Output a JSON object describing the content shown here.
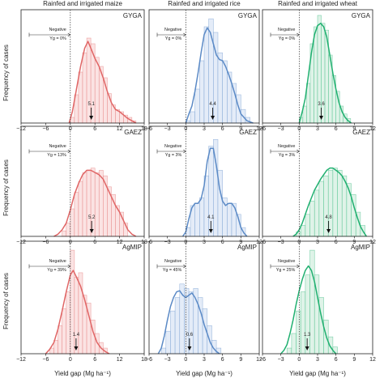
{
  "y_axis_title": "Frequency of cases",
  "x_axis_title": "Yield gap (Mg ha⁻¹)",
  "column_titles": [
    "Rainfed and irrigated maize",
    "Rainfed and irrigated rice",
    "Rainfed and irrigated wheat"
  ],
  "row_labels": [
    "GYGA",
    "GAEZ",
    "AgMIP"
  ],
  "colors": {
    "maize": "#e06666",
    "rice": "#5b8ac6",
    "wheat": "#20b070"
  },
  "fills": {
    "maize": "#fbe3e3",
    "rice": "#e4ecf8",
    "wheat": "#dff3e8"
  },
  "chart_data": [
    {
      "type": "bar",
      "crop": "maize",
      "dataset": "GYGA",
      "xlim": [
        -12,
        18
      ],
      "xticks": [
        -12,
        -6,
        0,
        6,
        12,
        18
      ],
      "negative_label": [
        "Negative",
        "Yg = 0%"
      ],
      "median": 5.1,
      "median_label": "5.1",
      "bins": [
        [
          0,
          0.05
        ],
        [
          1,
          0.25
        ],
        [
          2,
          0.45
        ],
        [
          3,
          0.62
        ],
        [
          4,
          0.75
        ],
        [
          5,
          0.7
        ],
        [
          6,
          0.58
        ],
        [
          7,
          0.5
        ],
        [
          8,
          0.4
        ],
        [
          9,
          0.26
        ],
        [
          10,
          0.16
        ],
        [
          11,
          0.12
        ],
        [
          12,
          0.1
        ],
        [
          13,
          0.07
        ],
        [
          14,
          0.05
        ],
        [
          15,
          0.02
        ]
      ],
      "density": [
        [
          -0.3,
          0
        ],
        [
          0.5,
          0.1
        ],
        [
          1.5,
          0.3
        ],
        [
          2.5,
          0.5
        ],
        [
          3.5,
          0.66
        ],
        [
          4.3,
          0.72
        ],
        [
          5,
          0.66
        ],
        [
          6,
          0.57
        ],
        [
          7,
          0.5
        ],
        [
          8,
          0.4
        ],
        [
          9,
          0.28
        ],
        [
          10,
          0.18
        ],
        [
          11,
          0.12
        ],
        [
          12,
          0.1
        ],
        [
          13,
          0.07
        ],
        [
          14,
          0.04
        ],
        [
          15,
          0.02
        ],
        [
          16,
          0
        ]
      ]
    },
    {
      "type": "bar",
      "crop": "rice",
      "dataset": "GYGA",
      "xlim": [
        -6,
        12
      ],
      "xticks": [
        -6,
        -3,
        0,
        3,
        6,
        9,
        12
      ],
      "negative_label": [
        "Negative",
        "Yg = 0%"
      ],
      "median": 4.4,
      "median_label": "4.4",
      "bins": [
        [
          0,
          0.02
        ],
        [
          0.75,
          0.1
        ],
        [
          1.5,
          0.3
        ],
        [
          2.25,
          0.55
        ],
        [
          3,
          0.85
        ],
        [
          3.75,
          0.92
        ],
        [
          4.5,
          0.8
        ],
        [
          5.25,
          0.62
        ],
        [
          6,
          0.55
        ],
        [
          6.75,
          0.45
        ],
        [
          7.5,
          0.35
        ],
        [
          8.25,
          0.25
        ],
        [
          9,
          0.12
        ],
        [
          9.75,
          0.05
        ]
      ],
      "density": [
        [
          0,
          0
        ],
        [
          0.5,
          0.08
        ],
        [
          1,
          0.15
        ],
        [
          1.5,
          0.28
        ],
        [
          2,
          0.44
        ],
        [
          2.5,
          0.62
        ],
        [
          3,
          0.78
        ],
        [
          3.5,
          0.84
        ],
        [
          4,
          0.8
        ],
        [
          4.5,
          0.7
        ],
        [
          5,
          0.6
        ],
        [
          5.5,
          0.56
        ],
        [
          6,
          0.55
        ],
        [
          6.5,
          0.5
        ],
        [
          7,
          0.43
        ],
        [
          7.5,
          0.35
        ],
        [
          8,
          0.26
        ],
        [
          8.5,
          0.16
        ],
        [
          9,
          0.08
        ],
        [
          10,
          0.02
        ],
        [
          11,
          0
        ]
      ]
    },
    {
      "type": "bar",
      "crop": "wheat",
      "dataset": "GYGA",
      "xlim": [
        -6,
        12
      ],
      "xticks": [
        -6,
        -3,
        0,
        3,
        6,
        9,
        12
      ],
      "negative_label": [
        "Negative",
        "Yg = 0%"
      ],
      "median": 3.6,
      "median_label": "3.6",
      "bins": [
        [
          0,
          0.05
        ],
        [
          0.6,
          0.15
        ],
        [
          1.2,
          0.35
        ],
        [
          1.8,
          0.7
        ],
        [
          2.4,
          0.85
        ],
        [
          3,
          0.95
        ],
        [
          3.6,
          0.88
        ],
        [
          4.2,
          0.82
        ],
        [
          4.8,
          0.6
        ],
        [
          5.4,
          0.42
        ],
        [
          6,
          0.28
        ],
        [
          6.6,
          0.15
        ],
        [
          7.2,
          0.08
        ],
        [
          7.8,
          0.04
        ]
      ],
      "density": [
        [
          0,
          0
        ],
        [
          0.5,
          0.1
        ],
        [
          1,
          0.22
        ],
        [
          1.5,
          0.42
        ],
        [
          2,
          0.62
        ],
        [
          2.5,
          0.78
        ],
        [
          3,
          0.86
        ],
        [
          3.5,
          0.88
        ],
        [
          4,
          0.85
        ],
        [
          4.5,
          0.76
        ],
        [
          5,
          0.6
        ],
        [
          5.5,
          0.44
        ],
        [
          6,
          0.3
        ],
        [
          6.5,
          0.18
        ],
        [
          7,
          0.1
        ],
        [
          7.5,
          0.05
        ],
        [
          8,
          0.02
        ],
        [
          8.5,
          0
        ]
      ]
    },
    {
      "type": "bar",
      "crop": "maize",
      "dataset": "GAEZ",
      "xlim": [
        -12,
        18
      ],
      "xticks": [
        -12,
        -6,
        0,
        6,
        12,
        18
      ],
      "negative_label": [
        "Negative",
        "Yg = 13%"
      ],
      "median": 5.2,
      "median_label": "5.2",
      "bins": [
        [
          -2,
          0.05
        ],
        [
          -1,
          0.12
        ],
        [
          0,
          0.25
        ],
        [
          1,
          0.4
        ],
        [
          2,
          0.5
        ],
        [
          3,
          0.58
        ],
        [
          4,
          0.6
        ],
        [
          5,
          0.62
        ],
        [
          6,
          0.58
        ],
        [
          7,
          0.6
        ],
        [
          8,
          0.55
        ],
        [
          9,
          0.45
        ],
        [
          10,
          0.38
        ],
        [
          11,
          0.28
        ],
        [
          12,
          0.22
        ],
        [
          13,
          0.12
        ]
      ],
      "density": [
        [
          -4,
          0
        ],
        [
          -3,
          0.02
        ],
        [
          -2,
          0.06
        ],
        [
          -1,
          0.12
        ],
        [
          0,
          0.24
        ],
        [
          1,
          0.38
        ],
        [
          2,
          0.48
        ],
        [
          3,
          0.56
        ],
        [
          4,
          0.6
        ],
        [
          5,
          0.6
        ],
        [
          6,
          0.58
        ],
        [
          7,
          0.56
        ],
        [
          8,
          0.52
        ],
        [
          9,
          0.44
        ],
        [
          10,
          0.36
        ],
        [
          11,
          0.28
        ],
        [
          12,
          0.22
        ],
        [
          13,
          0.14
        ],
        [
          14,
          0.06
        ],
        [
          15,
          0.02
        ],
        [
          16,
          0
        ]
      ]
    },
    {
      "type": "bar",
      "crop": "rice",
      "dataset": "GAEZ",
      "xlim": [
        -6,
        12
      ],
      "xticks": [
        -6,
        -3,
        0,
        3,
        6,
        9,
        12
      ],
      "negative_label": [
        "Negative",
        "Yg = 3%"
      ],
      "median": 4.1,
      "median_label": "4.1",
      "bins": [
        [
          0,
          0.08
        ],
        [
          0.75,
          0.28
        ],
        [
          1.5,
          0.3
        ],
        [
          2.25,
          0.35
        ],
        [
          3,
          0.55
        ],
        [
          3.75,
          0.82
        ],
        [
          4.5,
          0.88
        ],
        [
          5.25,
          0.6
        ],
        [
          6,
          0.35
        ],
        [
          6.75,
          0.3
        ],
        [
          7.5,
          0.3
        ],
        [
          8.25,
          0.2
        ],
        [
          9,
          0.08
        ]
      ],
      "density": [
        [
          -0.5,
          0
        ],
        [
          0,
          0.04
        ],
        [
          0.5,
          0.16
        ],
        [
          1,
          0.26
        ],
        [
          1.5,
          0.3
        ],
        [
          2,
          0.3
        ],
        [
          2.5,
          0.34
        ],
        [
          3,
          0.46
        ],
        [
          3.5,
          0.68
        ],
        [
          4,
          0.8
        ],
        [
          4.5,
          0.8
        ],
        [
          5,
          0.64
        ],
        [
          5.5,
          0.44
        ],
        [
          6,
          0.32
        ],
        [
          6.5,
          0.28
        ],
        [
          7,
          0.3
        ],
        [
          7.5,
          0.3
        ],
        [
          8,
          0.26
        ],
        [
          8.5,
          0.18
        ],
        [
          9,
          0.08
        ],
        [
          9.5,
          0.03
        ],
        [
          10,
          0
        ]
      ]
    },
    {
      "type": "bar",
      "crop": "wheat",
      "dataset": "GAEZ",
      "xlim": [
        -6,
        12
      ],
      "xticks": [
        -6,
        -3,
        0,
        3,
        6,
        9,
        12
      ],
      "negative_label": [
        "Negative",
        "Yg = 3%"
      ],
      "median": 4.8,
      "median_label": "4.8",
      "bins": [
        [
          -0.5,
          0.04
        ],
        [
          0.25,
          0.1
        ],
        [
          1,
          0.2
        ],
        [
          1.75,
          0.32
        ],
        [
          2.5,
          0.42
        ],
        [
          3.25,
          0.5
        ],
        [
          4,
          0.55
        ],
        [
          4.75,
          0.6
        ],
        [
          5.5,
          0.62
        ],
        [
          6.25,
          0.6
        ],
        [
          7,
          0.55
        ],
        [
          7.75,
          0.48
        ],
        [
          8.5,
          0.38
        ],
        [
          9.25,
          0.22
        ],
        [
          10,
          0.1
        ]
      ],
      "density": [
        [
          -1,
          0
        ],
        [
          -0.5,
          0.02
        ],
        [
          0,
          0.06
        ],
        [
          0.5,
          0.12
        ],
        [
          1,
          0.2
        ],
        [
          1.5,
          0.28
        ],
        [
          2,
          0.35
        ],
        [
          2.5,
          0.42
        ],
        [
          3,
          0.47
        ],
        [
          3.5,
          0.52
        ],
        [
          4,
          0.56
        ],
        [
          4.5,
          0.6
        ],
        [
          5,
          0.62
        ],
        [
          5.5,
          0.62
        ],
        [
          6,
          0.6
        ],
        [
          6.5,
          0.58
        ],
        [
          7,
          0.55
        ],
        [
          7.5,
          0.5
        ],
        [
          8,
          0.44
        ],
        [
          8.5,
          0.36
        ],
        [
          9,
          0.26
        ],
        [
          9.5,
          0.17
        ],
        [
          10,
          0.09
        ],
        [
          10.5,
          0.04
        ],
        [
          11,
          0
        ]
      ]
    },
    {
      "type": "bar",
      "crop": "maize",
      "dataset": "AgMIP",
      "xlim": [
        -12,
        18
      ],
      "xticks": [
        -12,
        -6,
        0,
        6,
        12,
        18
      ],
      "negative_label": [
        "Negative",
        "Yg = 39%"
      ],
      "median": 1.4,
      "median_label": "1.4",
      "bins": [
        [
          -5,
          0.05
        ],
        [
          -4,
          0.12
        ],
        [
          -3,
          0.25
        ],
        [
          -2,
          0.4
        ],
        [
          -1,
          0.55
        ],
        [
          0,
          0.92
        ],
        [
          1,
          0.68
        ],
        [
          2,
          0.72
        ],
        [
          3,
          0.52
        ],
        [
          4,
          0.45
        ],
        [
          5,
          0.3
        ],
        [
          6,
          0.18
        ],
        [
          7,
          0.1
        ],
        [
          8,
          0.05
        ]
      ],
      "density": [
        [
          -6,
          0
        ],
        [
          -5,
          0.04
        ],
        [
          -4,
          0.1
        ],
        [
          -3,
          0.22
        ],
        [
          -2,
          0.38
        ],
        [
          -1,
          0.55
        ],
        [
          0,
          0.7
        ],
        [
          0.7,
          0.74
        ],
        [
          1.5,
          0.68
        ],
        [
          2.5,
          0.6
        ],
        [
          3.5,
          0.48
        ],
        [
          4.5,
          0.34
        ],
        [
          5.5,
          0.2
        ],
        [
          6.5,
          0.1
        ],
        [
          7.5,
          0.05
        ],
        [
          8.5,
          0.02
        ],
        [
          9.5,
          0
        ]
      ]
    },
    {
      "type": "bar",
      "crop": "rice",
      "dataset": "AgMIP",
      "xlim": [
        -6,
        12
      ],
      "xticks": [
        -6,
        -3,
        0,
        3,
        6,
        9,
        12
      ],
      "negative_label": [
        "Negative",
        "Yg = 45%"
      ],
      "median": 0.6,
      "median_label": "0.6",
      "bins": [
        [
          -4,
          0.05
        ],
        [
          -3.25,
          0.2
        ],
        [
          -2.5,
          0.38
        ],
        [
          -1.75,
          0.5
        ],
        [
          -1,
          0.62
        ],
        [
          -0.25,
          0.58
        ],
        [
          0.5,
          0.55
        ],
        [
          1.25,
          0.58
        ],
        [
          2,
          0.5
        ],
        [
          2.75,
          0.4
        ],
        [
          3.5,
          0.25
        ],
        [
          4.25,
          0.12
        ],
        [
          5,
          0.05
        ]
      ],
      "density": [
        [
          -4.5,
          0
        ],
        [
          -4,
          0.05
        ],
        [
          -3.5,
          0.16
        ],
        [
          -3,
          0.3
        ],
        [
          -2.5,
          0.42
        ],
        [
          -2,
          0.5
        ],
        [
          -1.5,
          0.55
        ],
        [
          -1,
          0.56
        ],
        [
          -0.5,
          0.52
        ],
        [
          0,
          0.5
        ],
        [
          0.5,
          0.52
        ],
        [
          1,
          0.54
        ],
        [
          1.5,
          0.5
        ],
        [
          2,
          0.44
        ],
        [
          2.5,
          0.36
        ],
        [
          3,
          0.26
        ],
        [
          3.5,
          0.18
        ],
        [
          4,
          0.1
        ],
        [
          4.5,
          0.05
        ],
        [
          5,
          0.02
        ],
        [
          5.5,
          0
        ]
      ]
    },
    {
      "type": "bar",
      "crop": "wheat",
      "dataset": "AgMIP",
      "xlim": [
        -6,
        12
      ],
      "xticks": [
        -6,
        -3,
        0,
        3,
        6,
        9,
        12
      ],
      "negative_label": [
        "Negative",
        "Yg = 25%"
      ],
      "median": 1.3,
      "median_label": "1.3",
      "bins": [
        [
          -2,
          0.05
        ],
        [
          -1.25,
          0.18
        ],
        [
          -0.5,
          0.38
        ],
        [
          0.25,
          0.55
        ],
        [
          1,
          0.7
        ],
        [
          1.75,
          0.92
        ],
        [
          2.5,
          0.7
        ],
        [
          3.25,
          0.5
        ],
        [
          4,
          0.3
        ],
        [
          4.75,
          0.15
        ],
        [
          5.5,
          0.06
        ]
      ],
      "density": [
        [
          -3,
          0
        ],
        [
          -2.5,
          0.03
        ],
        [
          -2,
          0.08
        ],
        [
          -1.5,
          0.18
        ],
        [
          -1,
          0.3
        ],
        [
          -0.5,
          0.44
        ],
        [
          0,
          0.56
        ],
        [
          0.5,
          0.66
        ],
        [
          1,
          0.74
        ],
        [
          1.5,
          0.78
        ],
        [
          2,
          0.74
        ],
        [
          2.5,
          0.64
        ],
        [
          3,
          0.5
        ],
        [
          3.5,
          0.36
        ],
        [
          4,
          0.24
        ],
        [
          4.5,
          0.14
        ],
        [
          5,
          0.07
        ],
        [
          5.5,
          0.03
        ],
        [
          6,
          0
        ]
      ]
    }
  ]
}
